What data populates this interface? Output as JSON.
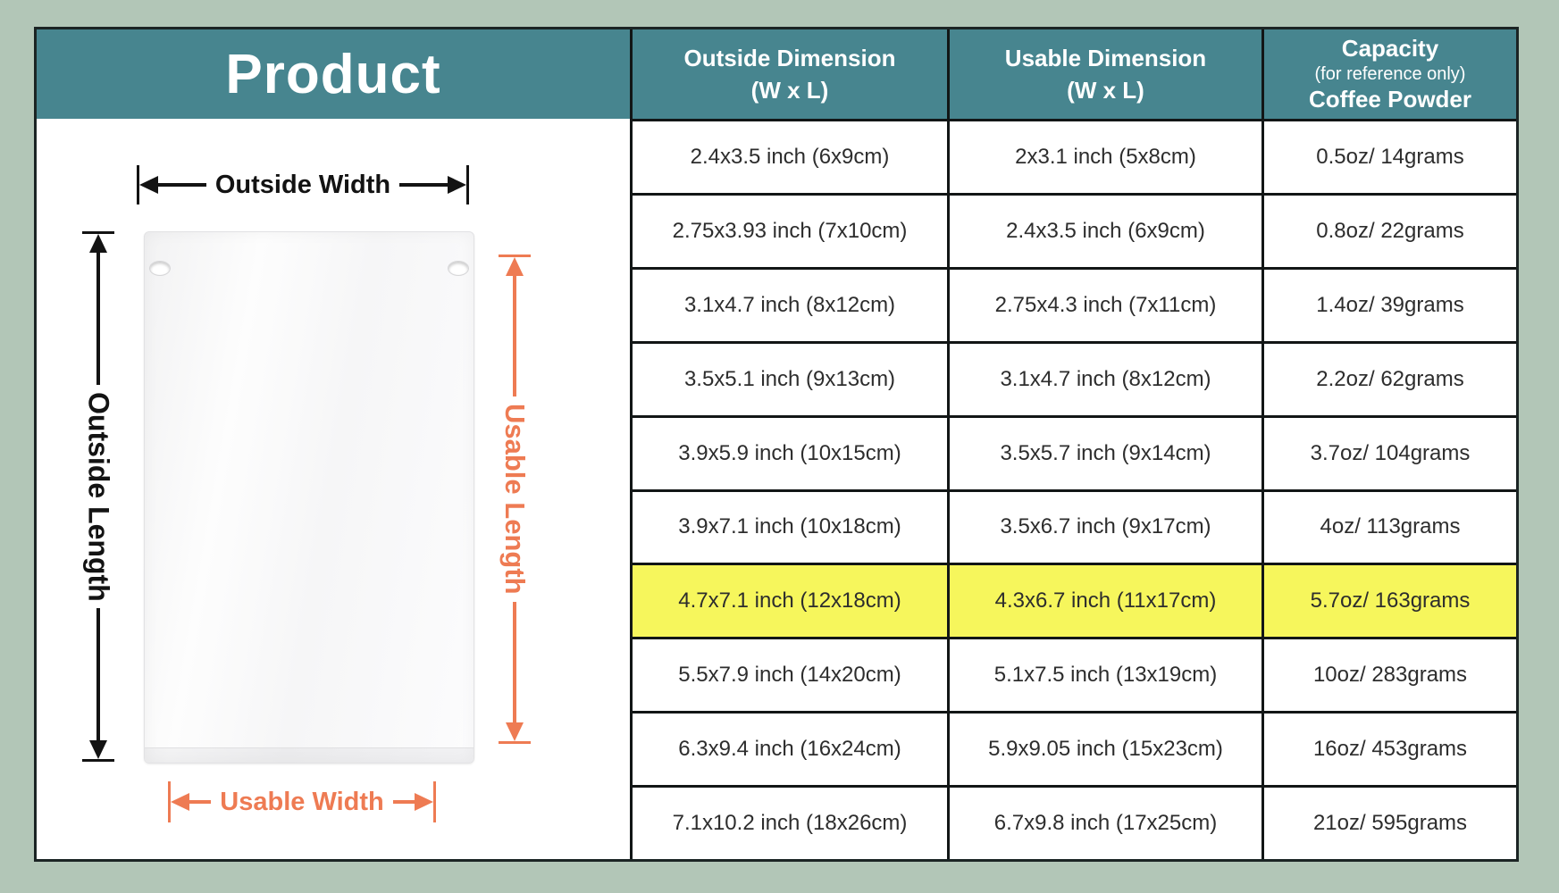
{
  "colors": {
    "page_background": "#B2C6B7",
    "teal": "#47858F",
    "orange": "#EE7B53",
    "row_highlight": "#F6F65C",
    "border_dark": "#1B2424"
  },
  "product": {
    "title": "Product",
    "labels": {
      "outside_width": "Outside Width",
      "outside_length": "Outside Length",
      "usable_length": "Usable Length",
      "usable_width": "Usable Width"
    }
  },
  "table": {
    "columns": [
      {
        "line1": "Outside Dimension",
        "line2": "(W x L)"
      },
      {
        "line1": "Usable Dimension",
        "line2": "(W x L)"
      },
      {
        "line1": "Capacity",
        "line2": "(for reference only)",
        "line3": "Coffee Powder"
      }
    ],
    "rows": [
      {
        "outside": "2.4x3.5 inch (6x9cm)",
        "usable": "2x3.1 inch (5x8cm)",
        "capacity": "0.5oz/ 14grams",
        "highlighted": false
      },
      {
        "outside": "2.75x3.93 inch (7x10cm)",
        "usable": "2.4x3.5 inch (6x9cm)",
        "capacity": "0.8oz/ 22grams",
        "highlighted": false
      },
      {
        "outside": "3.1x4.7 inch (8x12cm)",
        "usable": "2.75x4.3 inch (7x11cm)",
        "capacity": "1.4oz/ 39grams",
        "highlighted": false
      },
      {
        "outside": "3.5x5.1 inch (9x13cm)",
        "usable": "3.1x4.7 inch (8x12cm)",
        "capacity": "2.2oz/ 62grams",
        "highlighted": false
      },
      {
        "outside": "3.9x5.9 inch (10x15cm)",
        "usable": "3.5x5.7 inch (9x14cm)",
        "capacity": "3.7oz/ 104grams",
        "highlighted": false
      },
      {
        "outside": "3.9x7.1 inch (10x18cm)",
        "usable": "3.5x6.7 inch (9x17cm)",
        "capacity": "4oz/ 113grams",
        "highlighted": false
      },
      {
        "outside": "4.7x7.1 inch (12x18cm)",
        "usable": "4.3x6.7 inch (11x17cm)",
        "capacity": "5.7oz/ 163grams",
        "highlighted": true
      },
      {
        "outside": "5.5x7.9 inch (14x20cm)",
        "usable": "5.1x7.5 inch (13x19cm)",
        "capacity": "10oz/ 283grams",
        "highlighted": false
      },
      {
        "outside": "6.3x9.4 inch (16x24cm)",
        "usable": "5.9x9.05 inch (15x23cm)",
        "capacity": "16oz/ 453grams",
        "highlighted": false
      },
      {
        "outside": "7.1x10.2 inch (18x26cm)",
        "usable": "6.7x9.8 inch (17x25cm)",
        "capacity": "21oz/ 595grams",
        "highlighted": false
      }
    ]
  }
}
